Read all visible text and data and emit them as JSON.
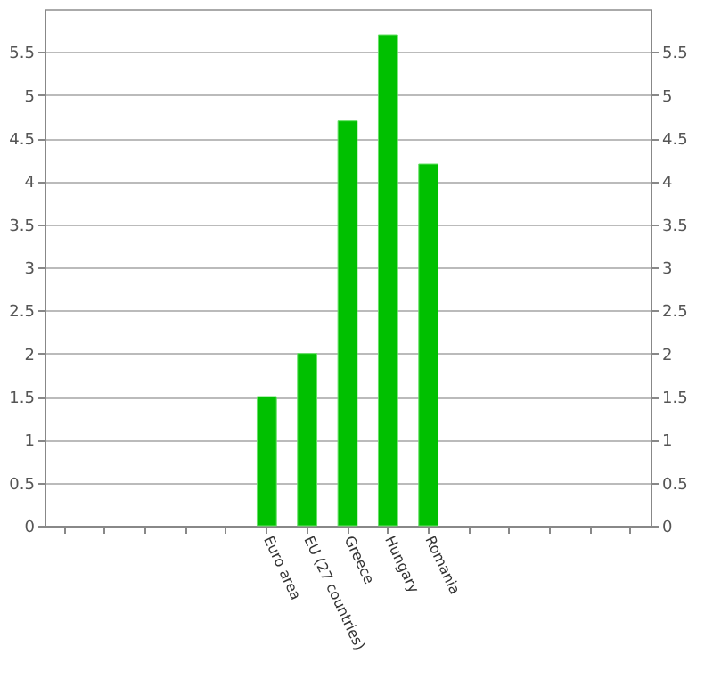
{
  "chart_data": {
    "type": "bar",
    "categories": [
      null,
      null,
      null,
      null,
      null,
      "Euro area",
      "EU (27 countries)",
      "Greece",
      "Hungary",
      "Romania",
      null,
      null,
      null,
      null,
      null
    ],
    "values": [
      null,
      null,
      null,
      null,
      null,
      1.5,
      2.0,
      4.7,
      5.7,
      4.2,
      null,
      null,
      null,
      null,
      null
    ],
    "color": "#00c000",
    "ylim": [
      0,
      6
    ],
    "yticks": [
      0,
      0.5,
      1,
      1.5,
      2,
      2.5,
      3,
      3.5,
      4,
      4.5,
      5,
      5.5
    ],
    "y2lim": [
      0,
      6
    ],
    "y2ticks": [
      0,
      0.5,
      1,
      1.5,
      2,
      2.5,
      3,
      3.5,
      4,
      4.5,
      5,
      5.5
    ],
    "grid": "y"
  }
}
